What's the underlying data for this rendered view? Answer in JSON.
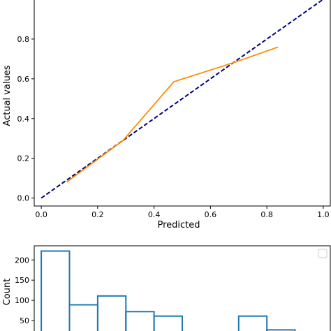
{
  "chart_data": [
    {
      "type": "line",
      "xlabel": "Predicted",
      "ylabel": "Actual values",
      "xlim": [
        -0.025,
        1.025
      ],
      "ylim": [
        -0.04,
        1.0
      ],
      "x_ticks": [
        "0.0",
        "0.2",
        "0.4",
        "0.6",
        "0.8",
        "1.0"
      ],
      "y_ticks": [
        "0.0",
        "0.2",
        "0.4",
        "0.6",
        "0.8"
      ],
      "x_tick_values": [
        0.0,
        0.2,
        0.4,
        0.6,
        0.8,
        1.0
      ],
      "y_tick_values": [
        0.0,
        0.2,
        0.4,
        0.6,
        0.8
      ],
      "grid": false,
      "series": [
        {
          "style": "dashed",
          "color": "#000080",
          "x": [
            0.0,
            1.0
          ],
          "y": [
            0.0,
            1.0
          ]
        },
        {
          "style": "solid",
          "color": "#ff8c00",
          "x": [
            0.09,
            0.29,
            0.47,
            0.69,
            0.84
          ],
          "y": [
            0.08,
            0.29,
            0.585,
            0.685,
            0.76
          ]
        }
      ]
    },
    {
      "type": "bar",
      "histtype": "step",
      "ylabel": "Count",
      "ylim": [
        0,
        235
      ],
      "y_ticks": [
        "50",
        "100",
        "150",
        "200"
      ],
      "y_tick_values": [
        50,
        100,
        150,
        200
      ],
      "color": "#1f77b4",
      "bin_width": 0.1,
      "bin_starts": [
        0.0,
        0.1,
        0.2,
        0.3,
        0.4,
        0.5,
        0.6,
        0.7,
        0.8
      ],
      "counts": [
        222,
        89,
        111,
        72,
        61,
        0,
        0,
        61,
        27
      ],
      "legend": "top-right"
    }
  ]
}
